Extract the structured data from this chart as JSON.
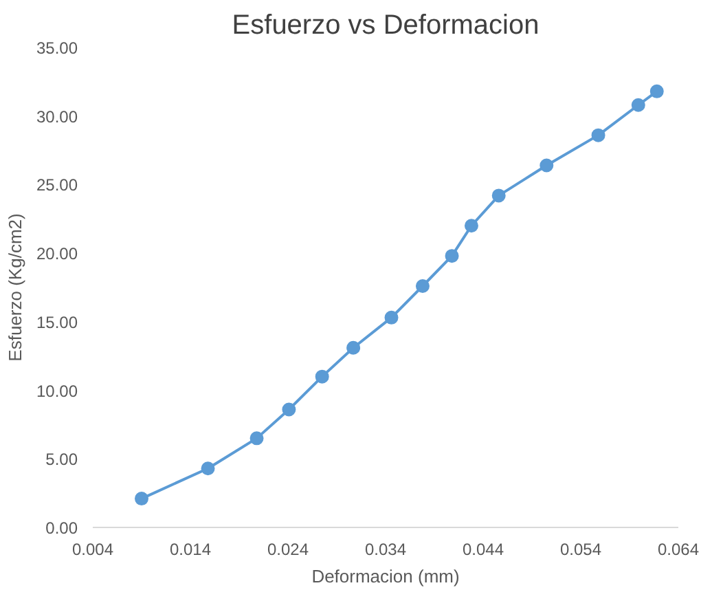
{
  "chart_data": {
    "type": "line",
    "title": "Esfuerzo vs Deformacion",
    "xlabel": "Deformacion (mm)",
    "ylabel": "Esfuerzo (Kg/cm2)",
    "x": [
      0.009,
      0.0158,
      0.0208,
      0.0241,
      0.0275,
      0.0307,
      0.0346,
      0.0378,
      0.0408,
      0.0428,
      0.0456,
      0.0505,
      0.0558,
      0.0599,
      0.0618
    ],
    "series": [
      {
        "color": "#5b9bd5",
        "values": [
          2.1,
          4.3,
          6.5,
          8.6,
          11.0,
          13.1,
          15.3,
          17.6,
          19.8,
          22.0,
          24.2,
          26.4,
          28.6,
          30.8,
          31.8
        ]
      }
    ],
    "xlim": [
      0.004,
      0.064
    ],
    "ylim": [
      0,
      35
    ],
    "xticks": [
      0.004,
      0.014,
      0.024,
      0.034,
      0.044,
      0.054,
      0.064
    ],
    "yticks": [
      {
        "value": 0,
        "label": "0.00"
      },
      {
        "value": 5,
        "label": "5.00"
      },
      {
        "value": 10,
        "label": "10.00"
      },
      {
        "value": 15,
        "label": "15.00"
      },
      {
        "value": 20,
        "label": "20.00"
      },
      {
        "value": 25,
        "label": "25.00"
      },
      {
        "value": 30,
        "label": "30.00"
      },
      {
        "value": 35,
        "label": "35.00"
      }
    ],
    "marker": "circle",
    "grid": false
  }
}
